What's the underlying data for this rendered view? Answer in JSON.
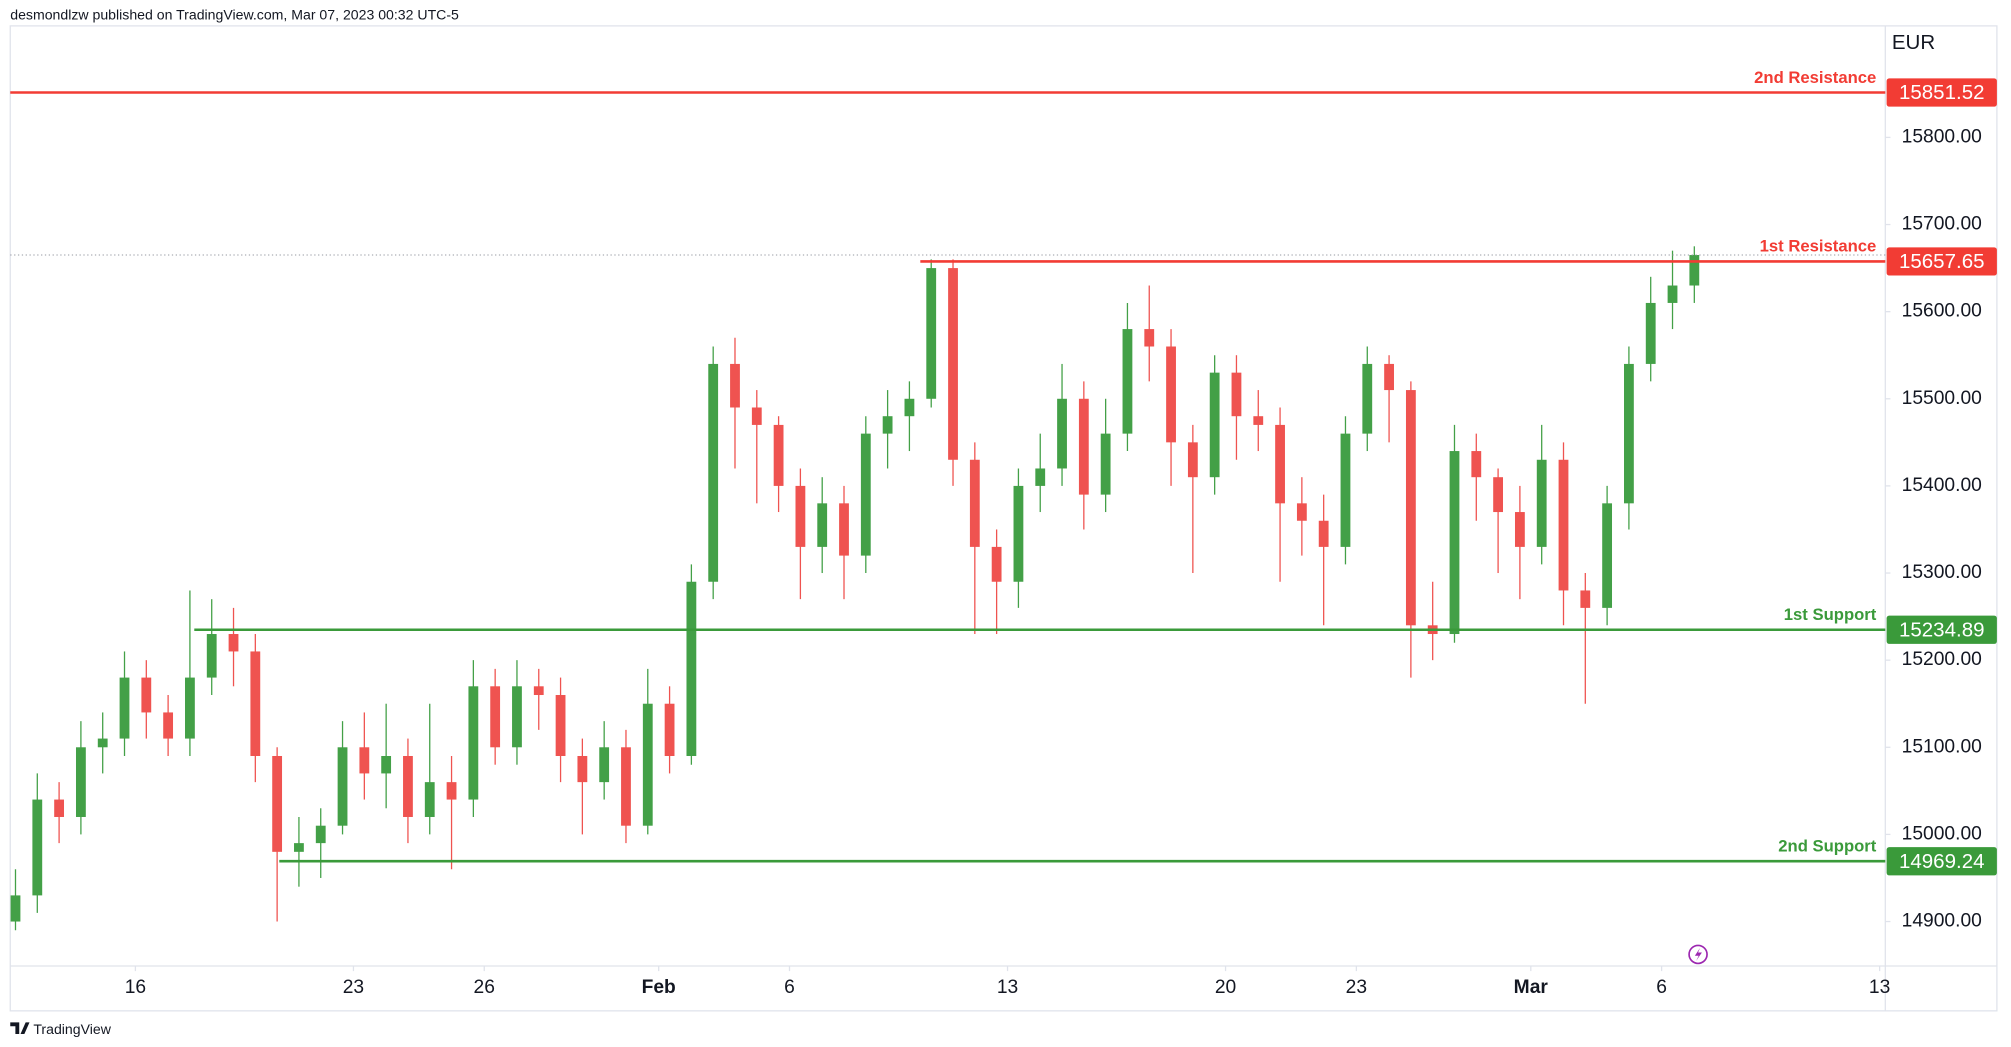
{
  "chart_data": {
    "type": "candlestick",
    "header": "desmondlzw published on TradingView.com, Mar 07, 2023 00:32 UTC-5",
    "currency": "EUR",
    "brand": "TradingView",
    "up_color": "#43a047",
    "down_color": "#ef5350",
    "open": [
      14900,
      14930,
      15040,
      15020,
      15100,
      15110,
      15180,
      15140,
      15110,
      15180,
      15230,
      15210,
      15090,
      14980,
      14990,
      15010,
      15100,
      15070,
      15090,
      15020,
      15060,
      15040,
      15170,
      15100,
      15170,
      15160,
      15090,
      15060,
      15100,
      15010,
      15150,
      15090,
      15290,
      15540,
      15490,
      15470,
      15400,
      15330,
      15380,
      15320,
      15460,
      15480,
      15500,
      15650,
      15430,
      15330,
      15290,
      15400,
      15420,
      15500,
      15390,
      15460,
      15580,
      15560,
      15450,
      15410,
      15530,
      15480,
      15470,
      15380,
      15360,
      15330,
      15460,
      15540,
      15510,
      15240,
      15230,
      15440,
      15410,
      15370,
      15330,
      15430,
      15280,
      15260,
      15380,
      15540,
      15610,
      15630
    ],
    "high": [
      14960,
      15070,
      15060,
      15130,
      15140,
      15210,
      15200,
      15160,
      15280,
      15270,
      15260,
      15230,
      15100,
      15020,
      15030,
      15130,
      15140,
      15150,
      15110,
      15150,
      15090,
      15200,
      15190,
      15200,
      15190,
      15180,
      15110,
      15130,
      15120,
      15190,
      15170,
      15310,
      15560,
      15570,
      15510,
      15480,
      15420,
      15410,
      15400,
      15480,
      15510,
      15520,
      15660,
      15660,
      15450,
      15350,
      15420,
      15460,
      15540,
      15520,
      15500,
      15610,
      15630,
      15580,
      15470,
      15550,
      15550,
      15510,
      15490,
      15410,
      15390,
      15480,
      15560,
      15550,
      15520,
      15290,
      15470,
      15460,
      15420,
      15400,
      15470,
      15450,
      15300,
      15400,
      15560,
      15640,
      15670,
      15675
    ],
    "low": [
      14890,
      14910,
      14990,
      15000,
      15070,
      15090,
      15110,
      15090,
      15090,
      15160,
      15170,
      15060,
      14900,
      14940,
      14950,
      15000,
      15040,
      15030,
      14990,
      15000,
      14960,
      15020,
      15080,
      15080,
      15120,
      15060,
      15000,
      15040,
      14990,
      15000,
      15070,
      15080,
      15270,
      15420,
      15380,
      15370,
      15270,
      15300,
      15270,
      15300,
      15420,
      15440,
      15490,
      15400,
      15230,
      15230,
      15260,
      15370,
      15400,
      15350,
      15370,
      15440,
      15520,
      15400,
      15300,
      15390,
      15430,
      15440,
      15290,
      15320,
      15240,
      15310,
      15440,
      15450,
      15180,
      15200,
      15220,
      15360,
      15300,
      15270,
      15310,
      15240,
      15150,
      15240,
      15350,
      15520,
      15580,
      15610
    ],
    "close": [
      14930,
      15040,
      15020,
      15100,
      15110,
      15180,
      15140,
      15110,
      15180,
      15230,
      15210,
      15090,
      14980,
      14990,
      15010,
      15100,
      15070,
      15090,
      15020,
      15060,
      15040,
      15170,
      15100,
      15170,
      15160,
      15090,
      15060,
      15100,
      15010,
      15150,
      15090,
      15290,
      15540,
      15490,
      15470,
      15400,
      15330,
      15380,
      15320,
      15460,
      15480,
      15500,
      15650,
      15430,
      15330,
      15290,
      15400,
      15420,
      15500,
      15390,
      15460,
      15580,
      15560,
      15450,
      15410,
      15530,
      15480,
      15470,
      15380,
      15360,
      15330,
      15460,
      15540,
      15510,
      15240,
      15230,
      15440,
      15410,
      15370,
      15330,
      15430,
      15280,
      15260,
      15380,
      15540,
      15610,
      15630,
      15665
    ],
    "xlim": [
      -0.24,
      85.76
    ],
    "xticks": [
      {
        "value": 5.5,
        "label": "16"
      },
      {
        "value": 15.5,
        "label": "23"
      },
      {
        "value": 21.5,
        "label": "26"
      },
      {
        "value": 29.5,
        "label": "Feb",
        "major": true
      },
      {
        "value": 35.5,
        "label": "6"
      },
      {
        "value": 45.5,
        "label": "13"
      },
      {
        "value": 55.5,
        "label": "20"
      },
      {
        "value": 61.5,
        "label": "23"
      },
      {
        "value": 69.5,
        "label": "Mar",
        "major": true
      },
      {
        "value": 75.5,
        "label": "6"
      },
      {
        "value": 85.5,
        "label": "13"
      }
    ],
    "ylim": [
      14849,
      15928
    ],
    "yticks": [
      {
        "value": 14900,
        "label": "14900.00"
      },
      {
        "value": 15000,
        "label": "15000.00"
      },
      {
        "value": 15100,
        "label": "15100.00"
      },
      {
        "value": 15200,
        "label": "15200.00"
      },
      {
        "value": 15300,
        "label": "15300.00"
      },
      {
        "value": 15400,
        "label": "15400.00"
      },
      {
        "value": 15500,
        "label": "15500.00"
      },
      {
        "value": 15600,
        "label": "15600.00"
      },
      {
        "value": 15700,
        "label": "15700.00"
      },
      {
        "value": 15800,
        "label": "15800.00"
      }
    ],
    "levels": [
      {
        "name": "2nd Resistance",
        "value": 15851.52,
        "color": "#f23c34",
        "x_start": -0.24
      },
      {
        "name": "1st Resistance",
        "value": 15657.65,
        "color": "#f23c34",
        "x_start": 41.5
      },
      {
        "name": "1st Support",
        "value": 15234.89,
        "color": "#3a9a3a",
        "x_start": 8.2
      },
      {
        "name": "2nd Support",
        "value": 14969.24,
        "color": "#3a9a3a",
        "x_start": 12.1
      }
    ]
  }
}
